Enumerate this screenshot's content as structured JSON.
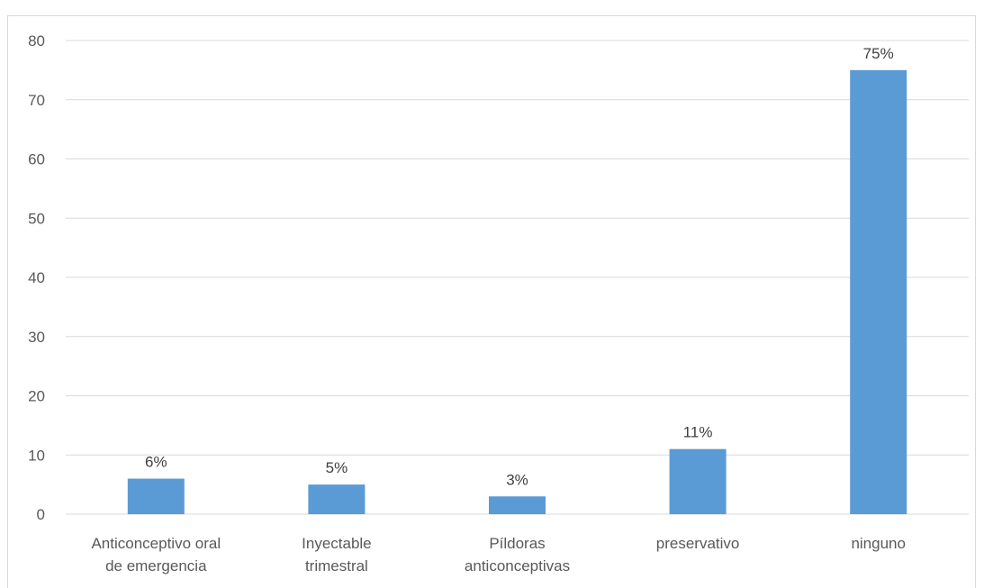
{
  "chart_data": {
    "type": "bar",
    "categories": [
      [
        "Anticonceptivo oral",
        "de emergencia"
      ],
      [
        "Inyectable",
        "trimestral"
      ],
      [
        "Píldoras",
        "anticonceptivas"
      ],
      [
        "preservativo"
      ],
      [
        "ninguno"
      ]
    ],
    "values": [
      6,
      5,
      3,
      11,
      75
    ],
    "data_labels": [
      "6%",
      "5%",
      "3%",
      "11%",
      "75%"
    ],
    "ylim": [
      0,
      80
    ],
    "yticks": [
      0,
      10,
      20,
      30,
      40,
      50,
      60,
      70,
      80
    ],
    "grid": true,
    "bar_color": "#5b9bd5",
    "grid_color": "#d9d9d9",
    "title": "",
    "xlabel": "",
    "ylabel": ""
  }
}
